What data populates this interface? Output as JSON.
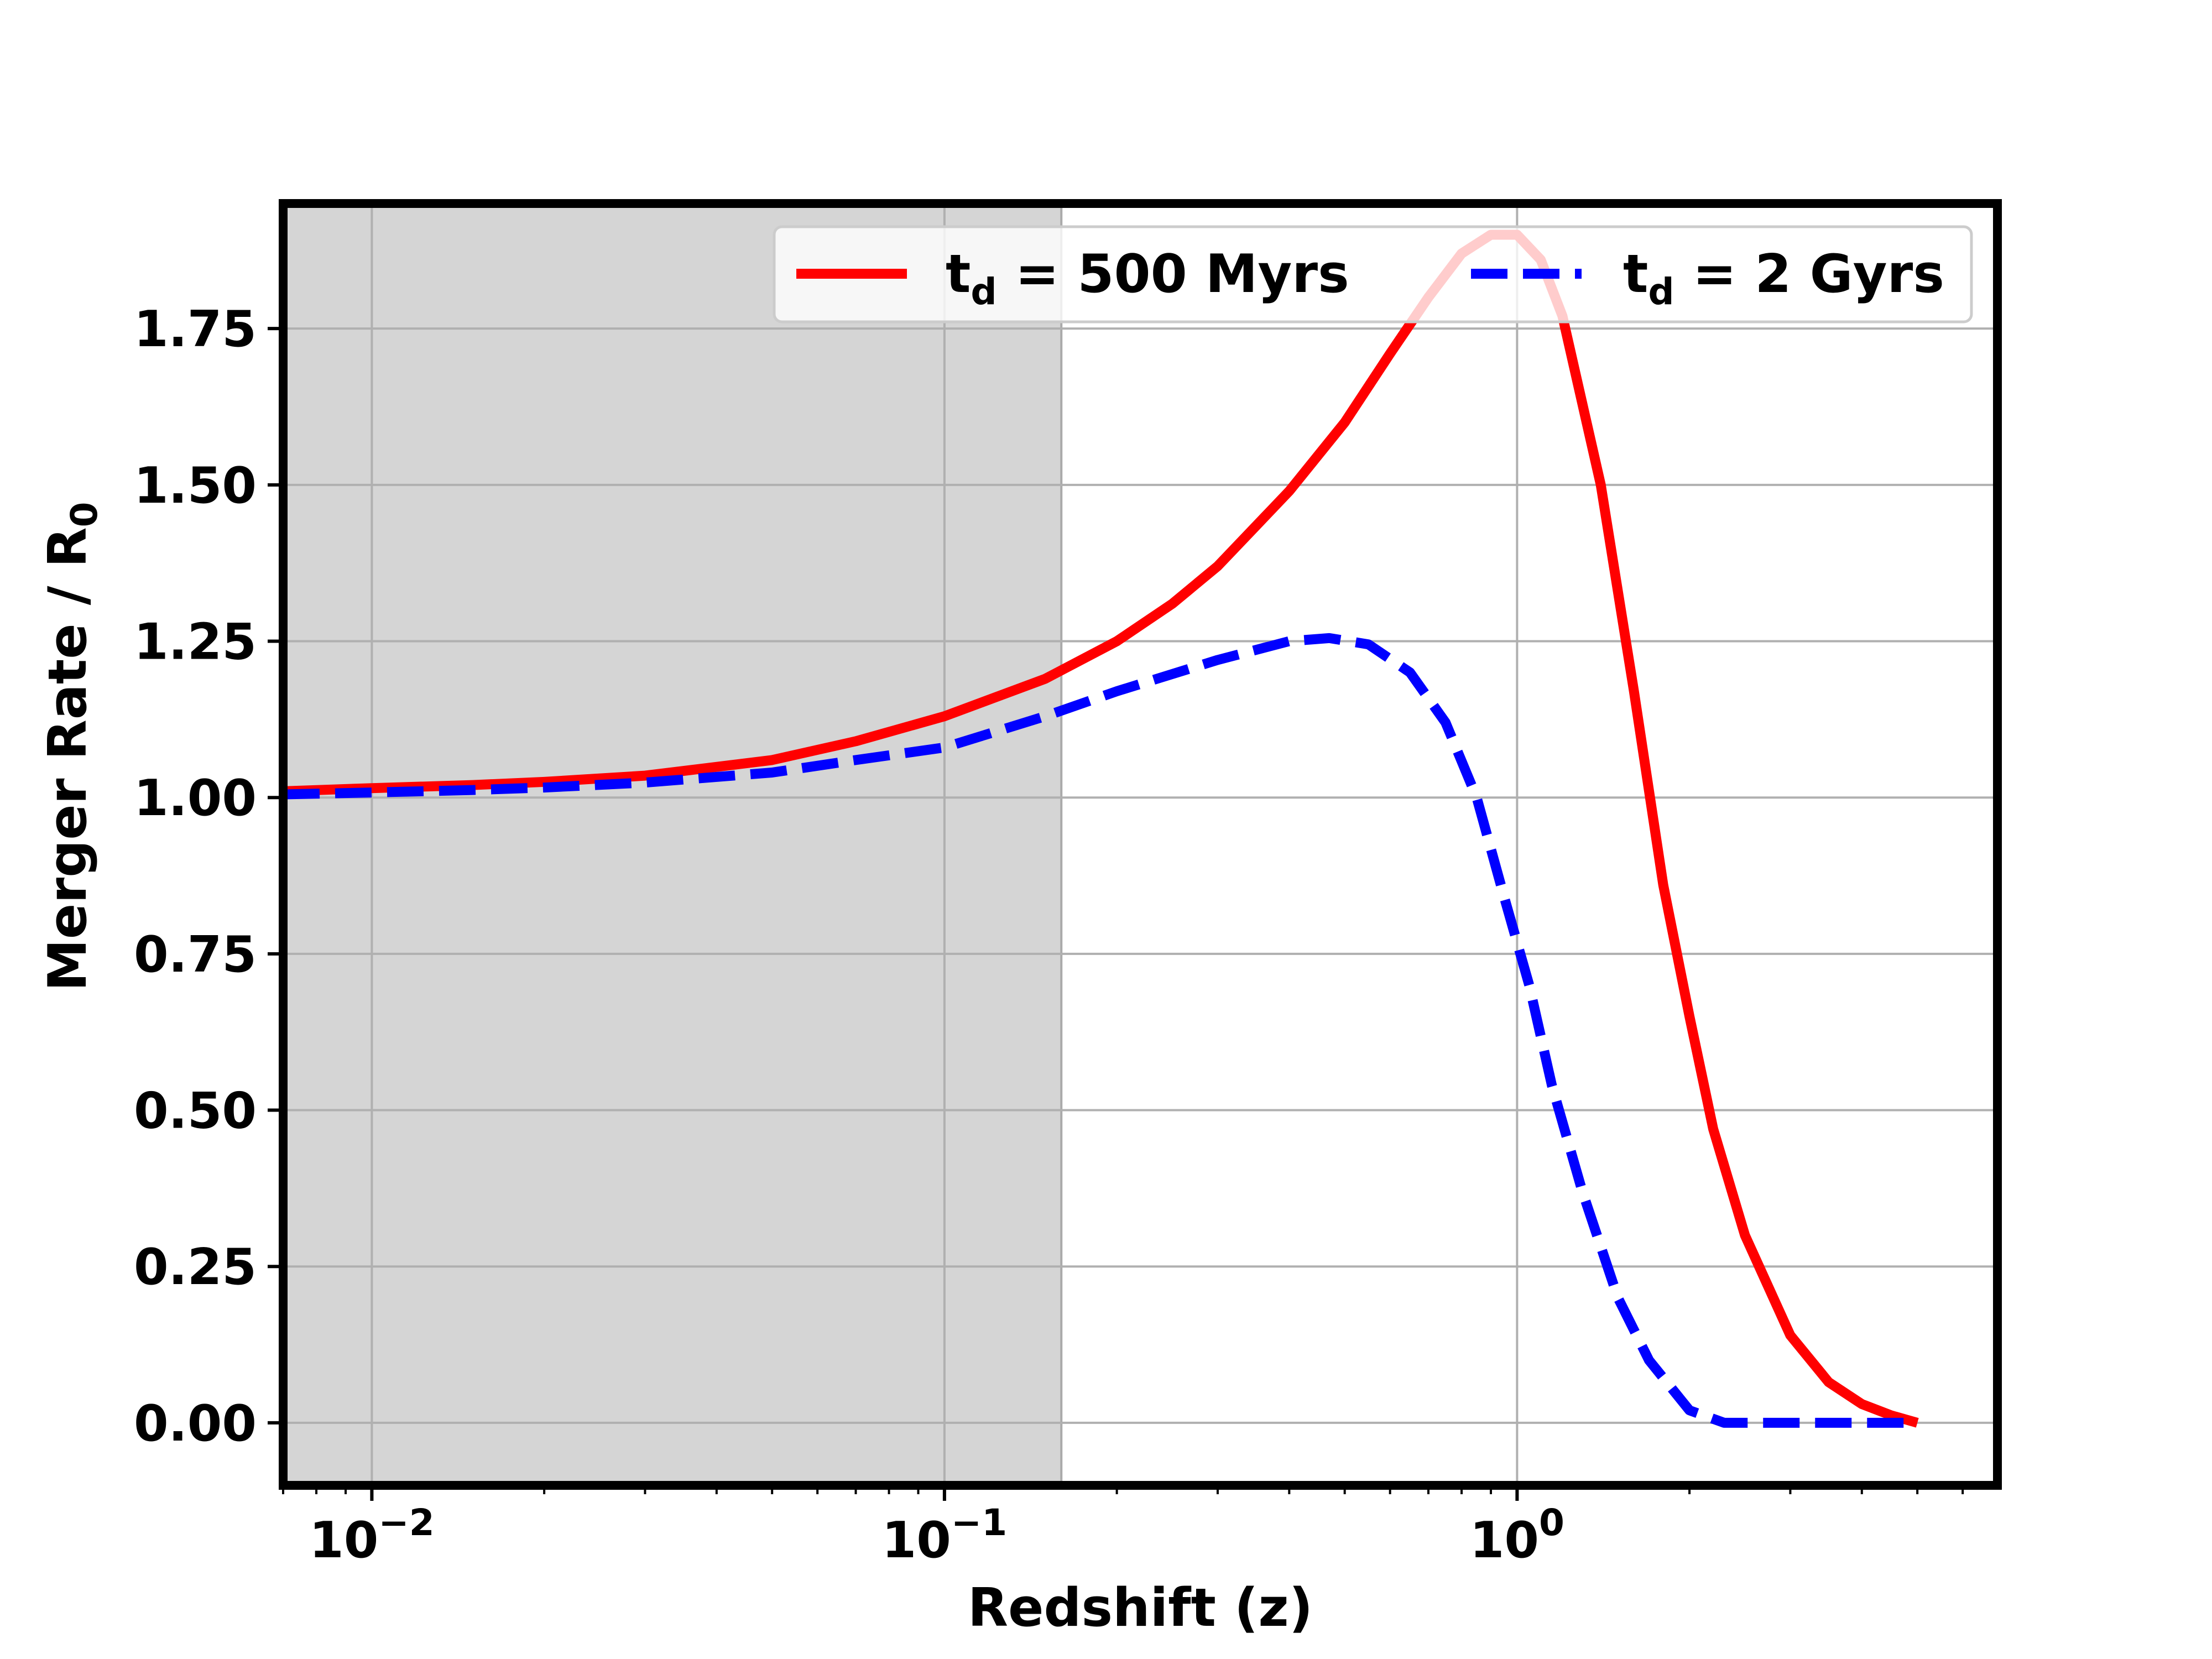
{
  "chart_data": {
    "type": "line",
    "xlabel": "Redshift (z)",
    "ylabel": "Merger Rate / R",
    "ylabel_sub": "0",
    "x_scale": "log",
    "xlim": [
      0.007,
      6.9
    ],
    "ylim": [
      -0.1,
      1.95
    ],
    "grid": true,
    "legend_position": "top-right",
    "legend_columns": 2,
    "x_ticks": [
      {
        "value": 0.01,
        "base": "10",
        "exp": "−2"
      },
      {
        "value": 0.1,
        "base": "10",
        "exp": "−1"
      },
      {
        "value": 1,
        "base": "10",
        "exp": "0"
      }
    ],
    "y_ticks": [
      {
        "value": 0.0,
        "label": "0.00"
      },
      {
        "value": 0.25,
        "label": "0.25"
      },
      {
        "value": 0.5,
        "label": "0.50"
      },
      {
        "value": 0.75,
        "label": "0.75"
      },
      {
        "value": 1.0,
        "label": "1.00"
      },
      {
        "value": 1.25,
        "label": "1.25"
      },
      {
        "value": 1.5,
        "label": "1.50"
      },
      {
        "value": 1.75,
        "label": "1.75"
      }
    ],
    "shaded_region": {
      "x_from": 0.007,
      "x_to": 0.16,
      "color": "#d5d5d5"
    },
    "series": [
      {
        "name": "t",
        "name_sub": "d",
        "name_rest": " = 500 Myrs",
        "color": "#ff0000",
        "style": "solid",
        "x": [
          0.007,
          0.01,
          0.015,
          0.02,
          0.03,
          0.05,
          0.07,
          0.1,
          0.15,
          0.2,
          0.25,
          0.3,
          0.4,
          0.5,
          0.6,
          0.7,
          0.8,
          0.9,
          1.0,
          1.1,
          1.2,
          1.4,
          1.6,
          1.8,
          2.0,
          2.2,
          2.5,
          3.0,
          3.5,
          4.0,
          4.5,
          5.0
        ],
        "y": [
          1.01,
          1.015,
          1.02,
          1.025,
          1.035,
          1.06,
          1.09,
          1.13,
          1.19,
          1.25,
          1.31,
          1.37,
          1.49,
          1.6,
          1.71,
          1.8,
          1.87,
          1.9,
          1.9,
          1.86,
          1.77,
          1.5,
          1.17,
          0.86,
          0.65,
          0.47,
          0.3,
          0.14,
          0.065,
          0.03,
          0.012,
          0.0
        ]
      },
      {
        "name": "t",
        "name_sub": "d",
        "name_rest": " = 2 Gyrs",
        "color": "#0000ff",
        "style": "dashed",
        "x": [
          0.007,
          0.01,
          0.015,
          0.02,
          0.03,
          0.05,
          0.07,
          0.1,
          0.15,
          0.2,
          0.3,
          0.4,
          0.47,
          0.55,
          0.65,
          0.75,
          0.85,
          0.95,
          1.05,
          1.15,
          1.3,
          1.5,
          1.7,
          2.0,
          2.3,
          2.6,
          3.0,
          3.5,
          4.0,
          5.0
        ],
        "y": [
          1.005,
          1.008,
          1.012,
          1.016,
          1.024,
          1.04,
          1.06,
          1.08,
          1.13,
          1.17,
          1.22,
          1.25,
          1.255,
          1.245,
          1.2,
          1.12,
          1.0,
          0.84,
          0.7,
          0.54,
          0.37,
          0.2,
          0.1,
          0.02,
          0.0,
          0.0,
          0.0,
          0.0,
          0.0,
          0.0
        ]
      }
    ]
  }
}
